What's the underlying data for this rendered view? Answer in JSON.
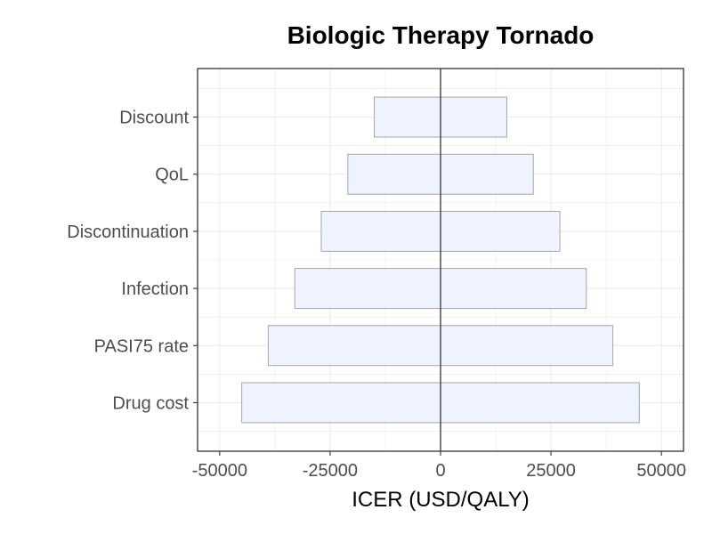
{
  "chart_data": {
    "type": "bar",
    "orientation": "horizontal",
    "title": "Biologic Therapy Tornado",
    "xlabel": "ICER (USD/QALY)",
    "ylabel": "",
    "xlim": [
      -55000,
      55000
    ],
    "x_ticks": [
      -50000,
      -25000,
      0,
      25000,
      50000
    ],
    "x_tick_labels": [
      "-50000",
      "-25000",
      "0",
      "25000",
      "50000"
    ],
    "categories": [
      "Drug cost",
      "PASI75 rate",
      "Infection",
      "Discontinuation",
      "QoL",
      "Discount"
    ],
    "low": [
      -45000,
      -39000,
      -33000,
      -27000,
      -21000,
      -15000
    ],
    "high": [
      45000,
      39000,
      33000,
      27000,
      21000,
      15000
    ],
    "baseline": 0,
    "grid": true,
    "legend": "none",
    "colors": {
      "bar_fill": "#eef3ff",
      "bar_stroke": "#a6a6a6",
      "grid": "#ebebeb",
      "axis": "#333333",
      "baseline": "#333333",
      "tick_label": "#4d4d4d"
    }
  }
}
